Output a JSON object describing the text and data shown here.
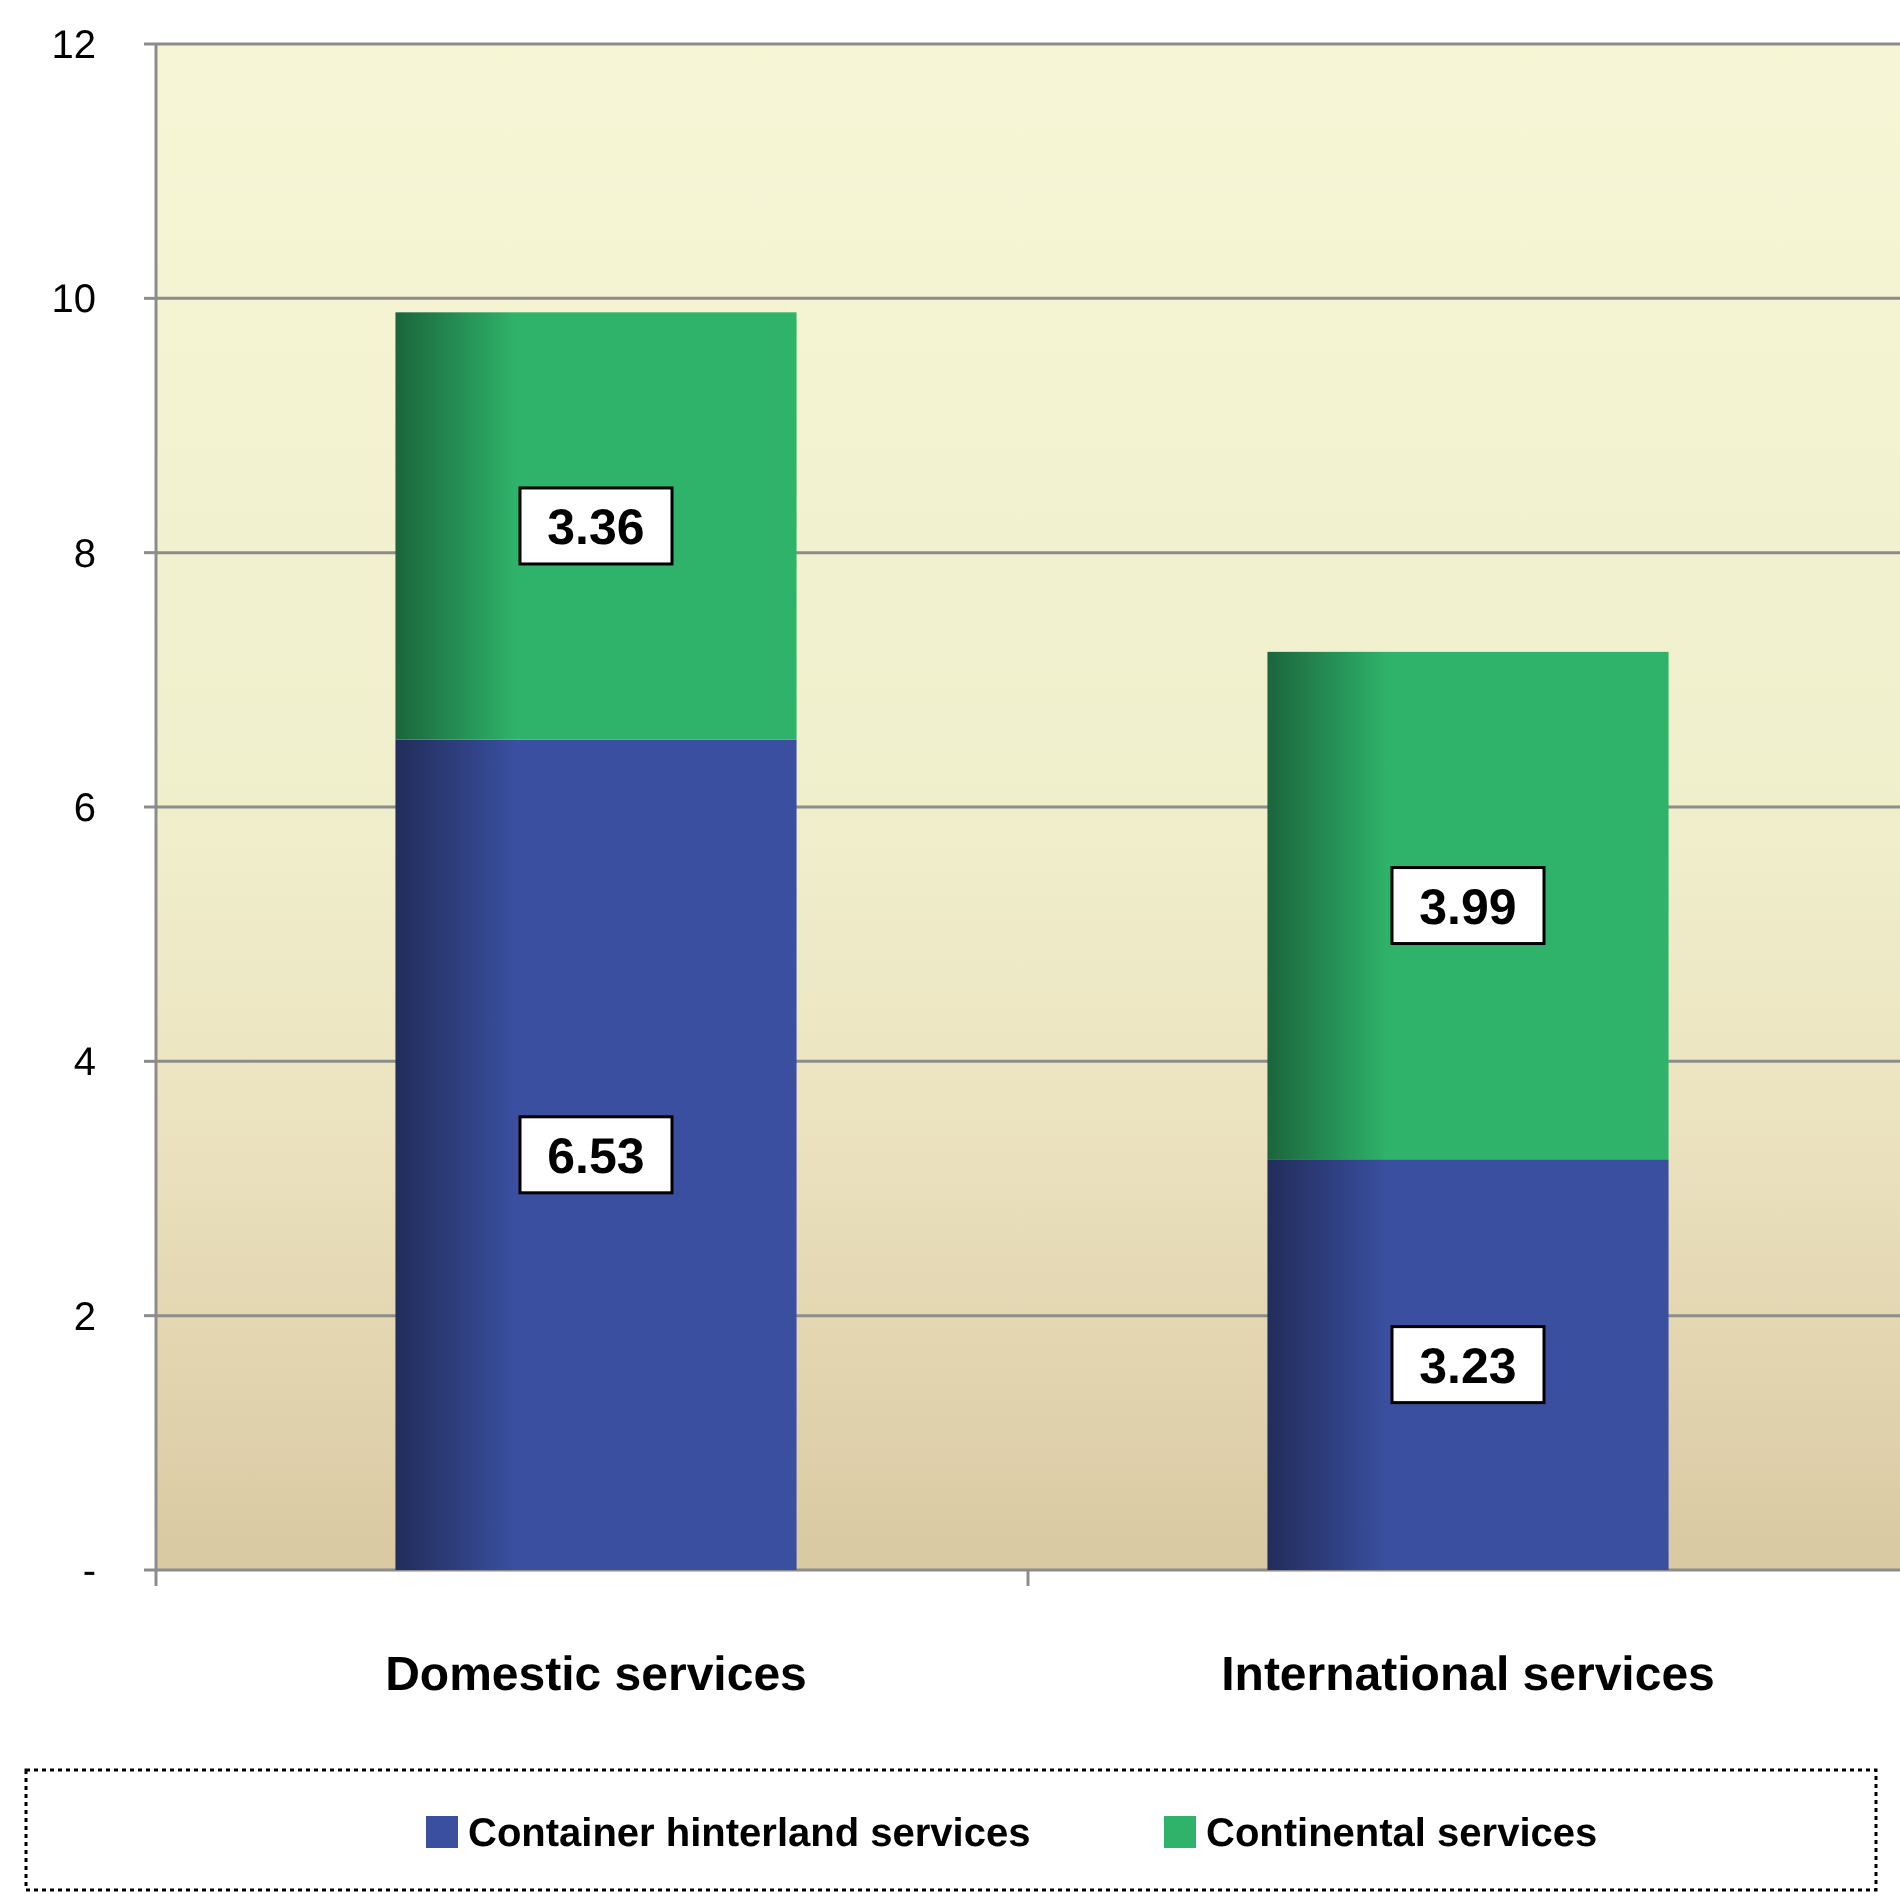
{
  "chart_data": {
    "type": "bar",
    "stacked": true,
    "categories": [
      "Domestic services",
      "International services"
    ],
    "series": [
      {
        "name": "Container hinterland services",
        "color": "#3a4fa0",
        "values": [
          6.53,
          3.23
        ]
      },
      {
        "name": "Continental services",
        "color": "#2fb36a",
        "values": [
          3.36,
          3.99
        ]
      }
    ],
    "ylim": [
      0,
      12
    ],
    "yticks": [
      {
        "value": 0,
        "label": "-"
      },
      2,
      4,
      6,
      8,
      10,
      12
    ],
    "grid": "y",
    "legend": "bottom",
    "data_labels": true
  }
}
